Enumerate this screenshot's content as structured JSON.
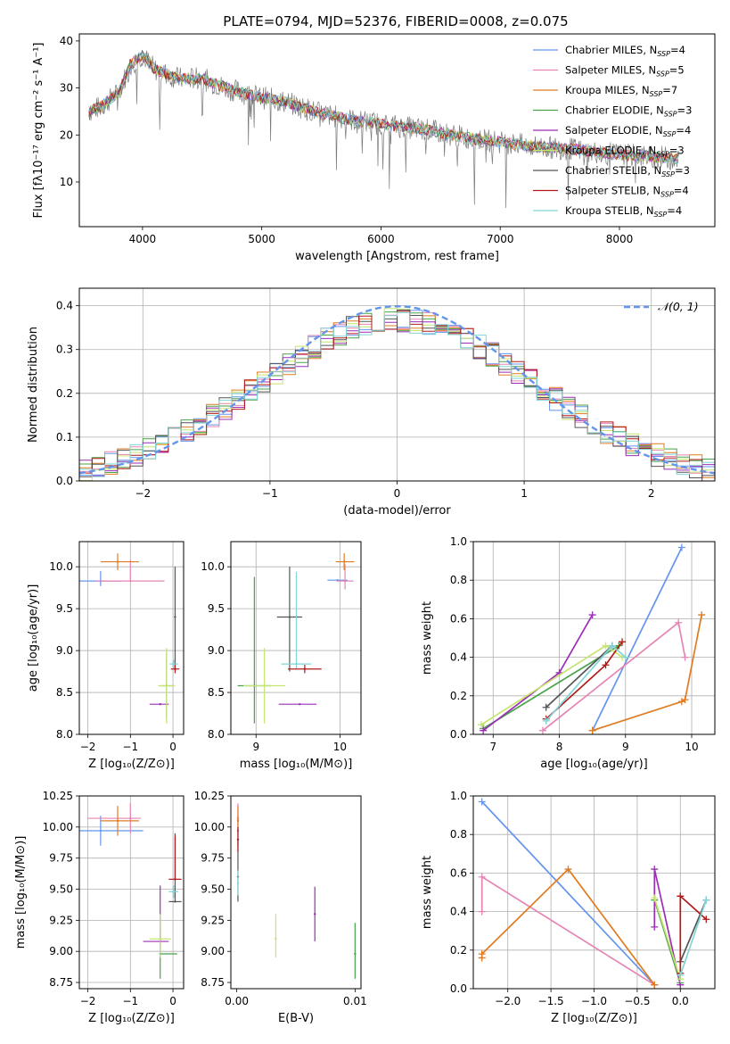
{
  "figure_title": "PLATE=0794, MJD=52376, FIBERID=0008, z=0.075",
  "model_colors": [
    "#6495ed",
    "#e685b5",
    "#e07b20",
    "#4aa24a",
    "#9a2fb5",
    "#c6e46e",
    "#555555",
    "#b21a1a",
    "#82d4d6"
  ],
  "chart_data": [
    {
      "id": "spectrum",
      "type": "line",
      "title": "PLATE=0794, MJD=52376, FIBERID=0008, z=0.075",
      "xlabel": "wavelength [Angstrom, rest frame]",
      "ylabel": "Flux [fλ10⁻¹⁷ erg cm⁻² s⁻¹ A⁻¹]",
      "xlim": [
        3470,
        8800
      ],
      "ylim": [
        0.5,
        41.5
      ],
      "xticks": [
        4000,
        5000,
        6000,
        7000,
        8000
      ],
      "yticks": [
        10,
        20,
        30,
        40
      ],
      "continuum_points": [
        [
          3550,
          25
        ],
        [
          3650,
          26
        ],
        [
          3800,
          29
        ],
        [
          3900,
          35
        ],
        [
          4000,
          37
        ],
        [
          4100,
          34
        ],
        [
          4300,
          32
        ],
        [
          4500,
          32
        ],
        [
          4700,
          30
        ],
        [
          4900,
          28.5
        ],
        [
          5200,
          27
        ],
        [
          5500,
          24.5
        ],
        [
          5800,
          23
        ],
        [
          6100,
          22
        ],
        [
          6400,
          21
        ],
        [
          6700,
          19.5
        ],
        [
          7000,
          18.5
        ],
        [
          7300,
          17.5
        ],
        [
          7600,
          17
        ],
        [
          7900,
          16
        ],
        [
          8200,
          15.5
        ],
        [
          8500,
          15
        ]
      ],
      "legend_position": "upper-right",
      "legend": [
        {
          "name": "Chabrier MILES, N",
          "sub": "SSP",
          "n": "=4"
        },
        {
          "name": "Salpeter MILES, N",
          "sub": "SSP",
          "n": "=5"
        },
        {
          "name": "Kroupa MILES, N",
          "sub": "SSP",
          "n": "=7"
        },
        {
          "name": "Chabrier ELODIE, N",
          "sub": "SSP",
          "n": "=3"
        },
        {
          "name": "Salpeter ELODIE, N",
          "sub": "SSP",
          "n": "=4"
        },
        {
          "name": "Kroupa ELODIE, N",
          "sub": "SSP",
          "n": "=3"
        },
        {
          "name": "Chabrier STELIB, N",
          "sub": "SSP",
          "n": "=3"
        },
        {
          "name": "Salpeter STELIB, N",
          "sub": "SSP",
          "n": "=4"
        },
        {
          "name": "Kroupa STELIB, N",
          "sub": "SSP",
          "n": "=4"
        }
      ]
    },
    {
      "id": "residuals",
      "type": "line",
      "xlabel": "(data-model)/error",
      "ylabel": "Normed distribution",
      "xlim": [
        -2.5,
        2.5
      ],
      "ylim": [
        0,
        0.44
      ],
      "xticks": [
        -2,
        -1,
        0,
        1,
        2
      ],
      "yticks": [
        0.0,
        0.1,
        0.2,
        0.3,
        0.4
      ],
      "grid": true,
      "legend_position": "upper-right",
      "reference_curve": {
        "label": "𝒩(0, 1)",
        "mean": 0,
        "sigma": 1
      }
    },
    {
      "id": "age_vs_Z",
      "type": "scatter",
      "xlabel": "Z [log₁₀(Z/Z⊙)]",
      "ylabel": "age  [log₁₀(age/yr)]",
      "xlim": [
        -2.2,
        0.25
      ],
      "ylim": [
        8.0,
        10.3
      ],
      "xticks": [
        -2,
        -1,
        0
      ],
      "yticks": [
        8.0,
        8.5,
        9.0,
        9.5,
        10.0
      ],
      "grid": true,
      "points": [
        {
          "c": 0,
          "x": -1.7,
          "y": 9.83,
          "xerr": [
            0.5,
            0.5
          ],
          "yerr": [
            0.06,
            0.12
          ]
        },
        {
          "c": 1,
          "x": -1.0,
          "y": 9.83,
          "xerr": [
            0.8,
            0.8
          ],
          "yerr": [
            0,
            0.25
          ]
        },
        {
          "c": 2,
          "x": -1.3,
          "y": 10.06,
          "xerr": [
            0.4,
            0.5
          ],
          "yerr": [
            0.1,
            0.1
          ]
        },
        {
          "c": 3,
          "x": -0.15,
          "y": 8.58,
          "xerr": [
            0.15,
            0.15
          ],
          "yerr": [
            0.4,
            0.4
          ]
        },
        {
          "c": 4,
          "x": -0.3,
          "y": 8.36,
          "xerr": [
            0.25,
            0.2
          ],
          "yerr": [
            0,
            0
          ]
        },
        {
          "c": 5,
          "x": -0.15,
          "y": 8.58,
          "xerr": [
            0.2,
            0.2
          ],
          "yerr": [
            0.45,
            0.45
          ]
        },
        {
          "c": 6,
          "x": 0.05,
          "y": 9.4,
          "xerr": [
            0,
            0
          ],
          "yerr": [
            0.6,
            0.6
          ]
        },
        {
          "c": 7,
          "x": 0.05,
          "y": 8.78,
          "xerr": [
            0.1,
            0.1
          ],
          "yerr": [
            0.05,
            0.05
          ]
        },
        {
          "c": 8,
          "x": 0.02,
          "y": 8.84,
          "xerr": [
            0.1,
            0.1
          ],
          "yerr": [
            0.05,
            0.05
          ]
        }
      ]
    },
    {
      "id": "age_vs_mass",
      "type": "scatter",
      "xlabel": "mass [log₁₀(M/M⊙)]",
      "ylabel": "",
      "xlim": [
        8.7,
        10.25
      ],
      "ylim": [
        8.0,
        10.3
      ],
      "xticks": [
        9,
        10
      ],
      "yticks": [
        8.0,
        8.5,
        9.0,
        9.5,
        10.0
      ],
      "grid": true,
      "points": [
        {
          "c": 0,
          "x": 9.97,
          "y": 9.84,
          "xerr": [
            0.12,
            0.12
          ],
          "yerr": [
            0,
            0
          ]
        },
        {
          "c": 1,
          "x": 10.06,
          "y": 9.83,
          "xerr": [
            0.1,
            0.1
          ],
          "yerr": [
            0.1,
            0.2
          ]
        },
        {
          "c": 2,
          "x": 10.05,
          "y": 10.06,
          "xerr": [
            0.1,
            0.12
          ],
          "yerr": [
            0.1,
            0.1
          ]
        },
        {
          "c": 3,
          "x": 8.98,
          "y": 8.58,
          "xerr": [
            0.2,
            0.2
          ],
          "yerr": [
            0.45,
            1.3
          ]
        },
        {
          "c": 4,
          "x": 9.52,
          "y": 8.36,
          "xerr": [
            0.25,
            0.2
          ],
          "yerr": [
            0,
            0
          ]
        },
        {
          "c": 5,
          "x": 9.1,
          "y": 8.58,
          "xerr": [
            0.25,
            0.25
          ],
          "yerr": [
            0.45,
            0.45
          ]
        },
        {
          "c": 6,
          "x": 9.4,
          "y": 9.4,
          "xerr": [
            0.15,
            0.15
          ],
          "yerr": [
            0.65,
            0.6
          ]
        },
        {
          "c": 7,
          "x": 9.58,
          "y": 8.78,
          "xerr": [
            0.2,
            0.2
          ],
          "yerr": [
            0.05,
            0.05
          ]
        },
        {
          "c": 8,
          "x": 9.48,
          "y": 8.84,
          "xerr": [
            0.18,
            0.18
          ],
          "yerr": [
            0.05,
            1.1
          ]
        }
      ]
    },
    {
      "id": "weight_vs_age",
      "type": "line",
      "xlabel": "age  [log₁₀(age/yr)]",
      "ylabel": "mass weight",
      "xlim": [
        6.7,
        10.35
      ],
      "ylim": [
        0,
        1.0
      ],
      "xticks": [
        7,
        8,
        9,
        10
      ],
      "yticks": [
        0.0,
        0.2,
        0.4,
        0.6,
        0.8,
        1.0
      ],
      "grid": true,
      "series": [
        {
          "c": 0,
          "x": [
            8.5,
            9.85
          ],
          "y": [
            0.02,
            0.97
          ]
        },
        {
          "c": 1,
          "x": [
            7.75,
            9.8,
            9.9
          ],
          "y": [
            0.02,
            0.58,
            0.4
          ]
        },
        {
          "c": 2,
          "x": [
            8.5,
            9.85,
            9.9,
            10.15
          ],
          "y": [
            0.02,
            0.17,
            0.18,
            0.62
          ]
        },
        {
          "c": 3,
          "x": [
            6.85,
            8.9
          ],
          "y": [
            0.03,
            0.46
          ]
        },
        {
          "c": 4,
          "x": [
            6.85,
            8.0,
            8.5
          ],
          "y": [
            0.02,
            0.32,
            0.62
          ]
        },
        {
          "c": 5,
          "x": [
            6.82,
            8.7,
            8.95
          ],
          "y": [
            0.05,
            0.46,
            0.4
          ]
        },
        {
          "c": 6,
          "x": [
            7.8,
            8.8
          ],
          "y": [
            0.14,
            0.46
          ]
        },
        {
          "c": 7,
          "x": [
            7.8,
            8.7,
            8.95
          ],
          "y": [
            0.08,
            0.36,
            0.48
          ]
        },
        {
          "c": 8,
          "x": [
            7.8,
            8.8,
            9.0
          ],
          "y": [
            0.07,
            0.46,
            0.4
          ]
        }
      ]
    },
    {
      "id": "mass_vs_Z",
      "type": "scatter",
      "xlabel": "Z [log₁₀(Z/Z⊙)]",
      "ylabel": "mass [log₁₀(M/M⊙)]",
      "xlim": [
        -2.2,
        0.25
      ],
      "ylim": [
        8.7,
        10.25
      ],
      "xticks": [
        -2,
        -1,
        0
      ],
      "yticks": [
        8.75,
        9.0,
        9.25,
        9.5,
        9.75,
        10.0,
        10.25
      ],
      "grid": true,
      "points": [
        {
          "c": 0,
          "x": -1.7,
          "y": 9.97,
          "xerr": [
            0.5,
            1.0
          ],
          "yerr": [
            0.12,
            0.12
          ]
        },
        {
          "c": 1,
          "x": -1.0,
          "y": 10.07,
          "xerr": [
            1.0,
            0.25
          ],
          "yerr": [
            0.12,
            0.12
          ]
        },
        {
          "c": 2,
          "x": -1.3,
          "y": 10.05,
          "xerr": [
            0.4,
            0.5
          ],
          "yerr": [
            0.12,
            0.12
          ]
        },
        {
          "c": 3,
          "x": -0.3,
          "y": 8.98,
          "xerr": [
            0,
            0.4
          ],
          "yerr": [
            0.2,
            0.2
          ]
        },
        {
          "c": 4,
          "x": -0.3,
          "y": 9.08,
          "xerr": [
            0.4,
            0.2
          ],
          "yerr": [
            0,
            0.45
          ]
        },
        {
          "c": 5,
          "x": -0.3,
          "y": 9.1,
          "xerr": [
            0.25,
            0.25
          ],
          "yerr": [
            0.15,
            0.2
          ]
        },
        {
          "c": 6,
          "x": 0.05,
          "y": 9.4,
          "xerr": [
            0.15,
            0.15
          ],
          "yerr": [
            0,
            0.55
          ]
        },
        {
          "c": 7,
          "x": 0.05,
          "y": 9.58,
          "xerr": [
            0.15,
            0.15
          ],
          "yerr": [
            0,
            0.35
          ]
        },
        {
          "c": 8,
          "x": 0.02,
          "y": 9.48,
          "xerr": [
            0.12,
            0.1
          ],
          "yerr": [
            0.05,
            0.05
          ]
        }
      ]
    },
    {
      "id": "mass_vs_ebv",
      "type": "scatter",
      "xlabel": "E(B-V)",
      "ylabel": "",
      "xlim": [
        -0.0005,
        0.0105
      ],
      "ylim": [
        8.7,
        10.25
      ],
      "xticks": [
        0.0,
        0.01
      ],
      "xticklabels": [
        "0.00",
        "0.01"
      ],
      "yticks": [
        8.75,
        9.0,
        9.25,
        9.5,
        9.75,
        10.0,
        10.25
      ],
      "grid": false,
      "points": [
        {
          "c": 0,
          "x": 0.0001,
          "y": 9.97,
          "xerr": [
            0,
            0
          ],
          "yerr": [
            0.12,
            0.12
          ]
        },
        {
          "c": 1,
          "x": 0.0001,
          "y": 10.07,
          "xerr": [
            0,
            0
          ],
          "yerr": [
            0.12,
            0.12
          ]
        },
        {
          "c": 2,
          "x": 0.0001,
          "y": 10.05,
          "xerr": [
            0,
            0
          ],
          "yerr": [
            0.12,
            0.12
          ]
        },
        {
          "c": 3,
          "x": 0.01,
          "y": 8.98,
          "xerr": [
            0,
            0
          ],
          "yerr": [
            0.2,
            0.25
          ]
        },
        {
          "c": 4,
          "x": 0.0066,
          "y": 9.3,
          "xerr": [
            0,
            0
          ],
          "yerr": [
            0.22,
            0.22
          ]
        },
        {
          "c": 5,
          "x": 0.0033,
          "y": 9.1,
          "xerr": [
            0,
            0
          ],
          "yerr": [
            0.15,
            0.2
          ]
        },
        {
          "c": 6,
          "x": 0.0001,
          "y": 9.6,
          "xerr": [
            0,
            0
          ],
          "yerr": [
            0.2,
            0.3
          ]
        },
        {
          "c": 7,
          "x": 0.0001,
          "y": 9.9,
          "xerr": [
            0,
            0
          ],
          "yerr": [
            0.1,
            0.1
          ]
        },
        {
          "c": 8,
          "x": 0.0001,
          "y": 9.55,
          "xerr": [
            0,
            0
          ],
          "yerr": [
            0.1,
            0.1
          ]
        }
      ]
    },
    {
      "id": "weight_vs_Z",
      "type": "line",
      "xlabel": "Z [log₁₀(Z/Z⊙)]",
      "ylabel": "mass weight",
      "xlim": [
        -2.4,
        0.4
      ],
      "ylim": [
        0,
        1.0
      ],
      "xticks": [
        -2.0,
        -1.5,
        -1.0,
        -0.5,
        0.0
      ],
      "xticklabels": [
        "−2.0",
        "−1.5",
        "−1.0",
        "−0.5",
        "0.0"
      ],
      "yticks": [
        0.0,
        0.2,
        0.4,
        0.6,
        0.8,
        1.0
      ],
      "grid": true,
      "series": [
        {
          "c": 0,
          "x": [
            -2.3,
            -0.3
          ],
          "y": [
            0.97,
            0.02
          ]
        },
        {
          "c": 1,
          "x": [
            -2.3,
            -2.3,
            -0.3
          ],
          "y": [
            0.4,
            0.58,
            0.02
          ]
        },
        {
          "c": 2,
          "x": [
            -2.3,
            -2.3,
            -1.3,
            -0.3
          ],
          "y": [
            0.16,
            0.18,
            0.62,
            0.02
          ]
        },
        {
          "c": 3,
          "x": [
            -0.3,
            0.0
          ],
          "y": [
            0.46,
            0.03
          ]
        },
        {
          "c": 4,
          "x": [
            -0.3,
            -0.3,
            0.0
          ],
          "y": [
            0.32,
            0.62,
            0.02
          ]
        },
        {
          "c": 5,
          "x": [
            -0.3,
            0.0
          ],
          "y": [
            0.47,
            0.05
          ]
        },
        {
          "c": 6,
          "x": [
            0.0,
            0.3
          ],
          "y": [
            0.14,
            0.46
          ]
        },
        {
          "c": 7,
          "x": [
            0.0,
            0.0,
            0.3
          ],
          "y": [
            0.08,
            0.48,
            0.36
          ]
        },
        {
          "c": 8,
          "x": [
            0.0,
            0.3
          ],
          "y": [
            0.07,
            0.46
          ]
        }
      ]
    }
  ]
}
